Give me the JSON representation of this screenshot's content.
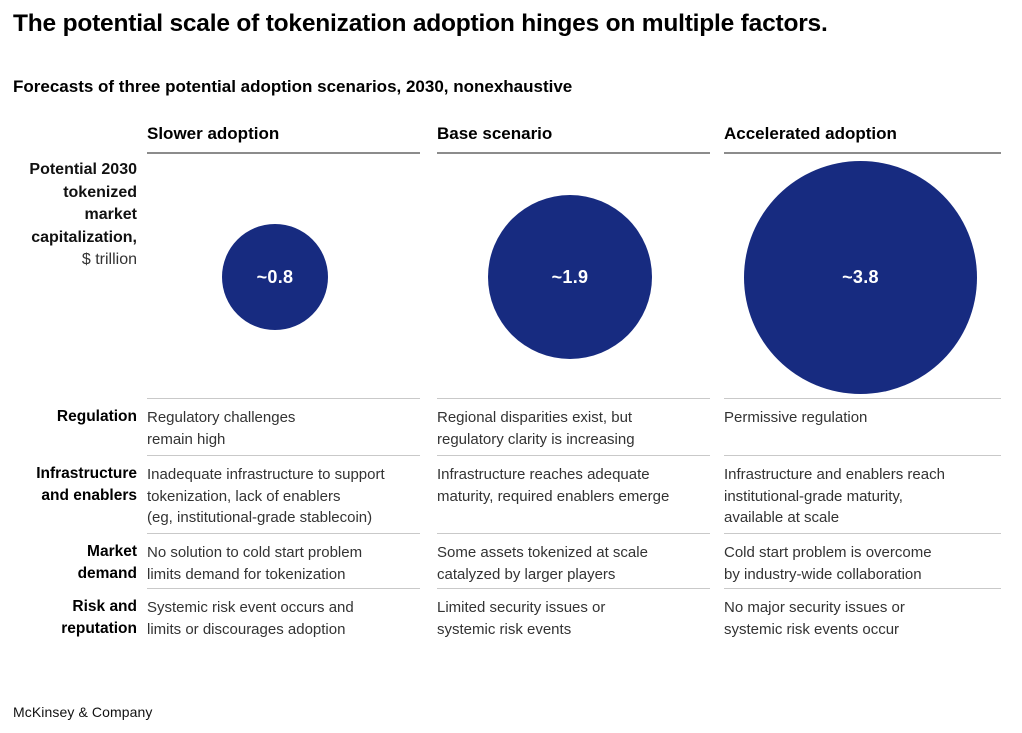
{
  "header": {
    "title": "The potential scale of tokenization adoption hinges on multiple factors.",
    "subtitle": "Forecasts of three potential adoption scenarios, 2030, nonexhaustive"
  },
  "metric": {
    "label": "Potential 2030\ntokenized\nmarket\ncapitalization,",
    "unit": "$ trillion"
  },
  "scenarios": [
    {
      "label": "Slower adoption",
      "bubble_label": "~0.8",
      "value_trillion": 0.8
    },
    {
      "label": "Base scenario",
      "bubble_label": "~1.9",
      "value_trillion": 1.9
    },
    {
      "label": "Accelerated adoption",
      "bubble_label": "~3.8",
      "value_trillion": 3.8
    }
  ],
  "factors": [
    {
      "label": "Regulation",
      "cells": [
        "Regulatory challenges\nremain high",
        "Regional disparities exist, but\nregulatory clarity is increasing",
        "Permissive regulation"
      ]
    },
    {
      "label": "Infrastructure\nand enablers",
      "cells": [
        "Inadequate infrastructure to support\ntokenization, lack of enablers\n(eg, institutional-grade stablecoin)",
        "Infrastructure reaches adequate\nmaturity, required enablers emerge",
        "Infrastructure and enablers reach\ninstitutional-grade maturity,\navailable at scale"
      ]
    },
    {
      "label": "Market\ndemand",
      "cells": [
        "No solution to cold start problem\nlimits demand for tokenization",
        "Some assets tokenized at scale\ncatalyzed by larger players",
        "Cold start problem is overcome\nby industry-wide collaboration"
      ]
    },
    {
      "label": "Risk and\nreputation",
      "cells": [
        "Systemic risk event occurs and\nlimits or discourages adoption",
        "Limited security issues or\nsystemic risk events",
        "No major security issues or\nsystemic risk events occur"
      ]
    }
  ],
  "footer": {
    "brand": "McKinsey & Company"
  },
  "colors": {
    "bubble_fill": "#172b80",
    "bubble_text": "#ffffff",
    "header_rule": "#8c8c8c",
    "row_rule": "#c9c9c9",
    "text_primary": "#000000",
    "text_body": "#333333"
  },
  "chart_data": {
    "type": "bubble",
    "title": "Forecasts of three potential adoption scenarios, 2030, nonexhaustive",
    "metric": "Potential 2030 tokenized market capitalization, $ trillion",
    "categories": [
      "Slower adoption",
      "Base scenario",
      "Accelerated adoption"
    ],
    "values": [
      0.8,
      1.9,
      3.8
    ],
    "value_labels": [
      "~0.8",
      "~1.9",
      "~3.8"
    ],
    "sizing": "circle area proportional to value",
    "legend_position": "none",
    "annotations_table": {
      "row_labels": [
        "Regulation",
        "Infrastructure and enablers",
        "Market demand",
        "Risk and reputation"
      ],
      "columns": [
        "Slower adoption",
        "Base scenario",
        "Accelerated adoption"
      ],
      "cells": [
        [
          "Regulatory challenges remain high",
          "Regional disparities exist, but regulatory clarity is increasing",
          "Permissive regulation"
        ],
        [
          "Inadequate infrastructure to support tokenization, lack of enablers (eg, institutional-grade stablecoin)",
          "Infrastructure reaches adequate maturity, required enablers emerge",
          "Infrastructure and enablers reach institutional-grade maturity, available at scale"
        ],
        [
          "No solution to cold start problem limits demand for tokenization",
          "Some assets tokenized at scale catalyzed by larger players",
          "Cold start problem is overcome by industry-wide collaboration"
        ],
        [
          "Systemic risk event occurs and limits or discourages adoption",
          "Limited security issues or systemic risk events",
          "No major security issues or systemic risk events occur"
        ]
      ]
    }
  }
}
